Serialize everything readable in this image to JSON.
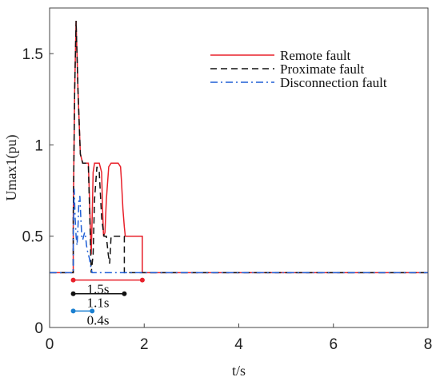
{
  "chart_data": {
    "type": "line",
    "xlabel": "t/s",
    "ylabel": "Umax1(pu)",
    "xlim": [
      0,
      8
    ],
    "ylim": [
      0,
      1.75
    ],
    "xticks": [
      0,
      2,
      4,
      6,
      8
    ],
    "yticks": [
      0,
      0.5,
      1,
      1.5
    ],
    "xtick_labels": [
      "0",
      "2",
      "4",
      "6",
      "8"
    ],
    "ytick_labels": [
      "0",
      "0.5",
      "1",
      "1.5"
    ],
    "grid": false,
    "legend_position": "top-right",
    "series": [
      {
        "name": "Remote fault",
        "color": "#e8202a",
        "style": "solid",
        "x": [
          0,
          0.5,
          0.5,
          0.53,
          0.56,
          0.6,
          0.65,
          0.7,
          0.74,
          0.78,
          0.82,
          0.85,
          0.88,
          0.9,
          0.92,
          0.95,
          1.0,
          1.05,
          1.1,
          1.12,
          1.14,
          1.17,
          1.2,
          1.25,
          1.3,
          1.32,
          1.35,
          1.4,
          1.45,
          1.5,
          1.52,
          1.55,
          1.58,
          1.6,
          1.62,
          1.65,
          1.7,
          1.8,
          1.9,
          1.96,
          1.96,
          8
        ],
        "y": [
          0.3,
          0.3,
          0.6,
          1.3,
          1.68,
          1.3,
          0.95,
          0.9,
          0.9,
          0.9,
          0.9,
          0.65,
          0.4,
          0.6,
          0.85,
          0.9,
          0.9,
          0.9,
          0.85,
          0.65,
          0.5,
          0.52,
          0.7,
          0.88,
          0.9,
          0.9,
          0.9,
          0.9,
          0.9,
          0.88,
          0.8,
          0.65,
          0.55,
          0.5,
          0.5,
          0.5,
          0.5,
          0.5,
          0.5,
          0.5,
          0.3,
          0.3
        ]
      },
      {
        "name": "Proximate fault",
        "color": "#111111",
        "style": "dashed",
        "x": [
          0,
          0.5,
          0.5,
          0.53,
          0.56,
          0.6,
          0.65,
          0.7,
          0.74,
          0.78,
          0.82,
          0.85,
          0.88,
          0.92,
          0.95,
          1.0,
          1.05,
          1.1,
          1.15,
          1.2,
          1.24,
          1.27,
          1.3,
          1.35,
          1.4,
          1.45,
          1.5,
          1.55,
          1.58,
          1.58,
          8
        ],
        "y": [
          0.3,
          0.3,
          0.6,
          1.3,
          1.68,
          1.3,
          0.95,
          0.9,
          0.9,
          0.9,
          0.88,
          0.6,
          0.3,
          0.4,
          0.7,
          0.88,
          0.85,
          0.6,
          0.5,
          0.5,
          0.4,
          0.35,
          0.5,
          0.5,
          0.5,
          0.5,
          0.5,
          0.5,
          0.5,
          0.3,
          0.3
        ]
      },
      {
        "name": "Disconnection fault",
        "color": "#1f5fd6",
        "style": "dashdot",
        "x": [
          0,
          0.5,
          0.5,
          0.52,
          0.54,
          0.56,
          0.58,
          0.6,
          0.62,
          0.64,
          0.66,
          0.68,
          0.7,
          0.72,
          0.74,
          0.76,
          0.78,
          0.8,
          0.82,
          0.84,
          0.86,
          0.88,
          0.9,
          8
        ],
        "y": [
          0.3,
          0.3,
          0.5,
          0.76,
          0.6,
          0.5,
          0.45,
          0.55,
          0.7,
          0.72,
          0.6,
          0.5,
          0.48,
          0.5,
          0.52,
          0.5,
          0.45,
          0.42,
          0.4,
          0.38,
          0.35,
          0.32,
          0.3,
          0.3
        ]
      }
    ],
    "annotations": [
      {
        "label": "1.5s",
        "x_start": 0.5,
        "x_end": 1.96,
        "y": 0.26,
        "color": "#e8202a"
      },
      {
        "label": "1.1s",
        "x_start": 0.5,
        "x_end": 1.58,
        "y": 0.185,
        "color": "#111111"
      },
      {
        "label": "0.4s",
        "x_start": 0.5,
        "x_end": 0.9,
        "y": 0.09,
        "color": "#1a7fd0"
      }
    ]
  }
}
